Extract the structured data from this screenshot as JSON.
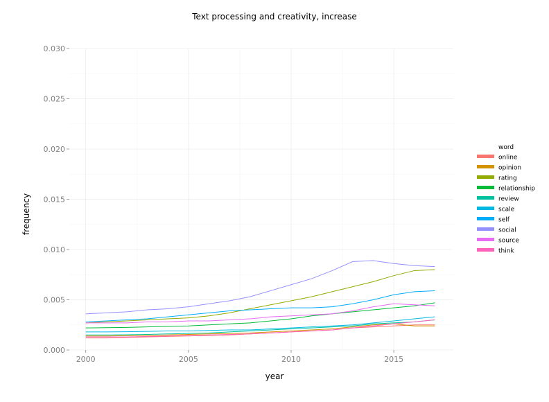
{
  "chart_data": {
    "type": "line",
    "title": "Text processing and creativity, increase",
    "xlabel": "year",
    "ylabel": "frequency",
    "xlim": [
      1999.2,
      2017.9
    ],
    "ylim": [
      0,
      0.03
    ],
    "x_ticks": [
      2000,
      2005,
      2010,
      2015
    ],
    "x_tick_labels": [
      "2000",
      "2005",
      "2010",
      "2015"
    ],
    "y_ticks": [
      0,
      0.005,
      0.01,
      0.015,
      0.02,
      0.025,
      0.03
    ],
    "y_tick_labels": [
      "0.000",
      "0.005",
      "0.010",
      "0.015",
      "0.020",
      "0.025",
      "0.030"
    ],
    "grid": true,
    "legend": {
      "title": "word",
      "placement": "right"
    },
    "x": [
      2000,
      2001,
      2002,
      2003,
      2004,
      2005,
      2006,
      2007,
      2008,
      2009,
      2010,
      2011,
      2012,
      2013,
      2014,
      2015,
      2016,
      2017
    ],
    "series": [
      {
        "name": "online",
        "color": "#F8766D",
        "values": [
          0.0012,
          0.0012,
          0.00125,
          0.0013,
          0.00135,
          0.0014,
          0.00145,
          0.0015,
          0.0016,
          0.0017,
          0.0018,
          0.0019,
          0.002,
          0.0022,
          0.0023,
          0.0024,
          0.0025,
          0.0025
        ]
      },
      {
        "name": "opinion",
        "color": "#D39200",
        "values": [
          0.0014,
          0.0014,
          0.00142,
          0.00145,
          0.0015,
          0.00155,
          0.0016,
          0.00165,
          0.0017,
          0.0018,
          0.0019,
          0.002,
          0.0021,
          0.0023,
          0.0025,
          0.0026,
          0.0024,
          0.0024
        ]
      },
      {
        "name": "rating",
        "color": "#93AA00",
        "values": [
          0.0027,
          0.0028,
          0.0029,
          0.003,
          0.0031,
          0.0032,
          0.0034,
          0.0037,
          0.0041,
          0.0045,
          0.0049,
          0.0053,
          0.0058,
          0.0063,
          0.0068,
          0.0074,
          0.0079,
          0.008
        ]
      },
      {
        "name": "relationship",
        "color": "#00BA38",
        "values": [
          0.0022,
          0.00222,
          0.00225,
          0.0023,
          0.00235,
          0.0024,
          0.0025,
          0.0026,
          0.0027,
          0.0029,
          0.0031,
          0.0034,
          0.0036,
          0.0038,
          0.004,
          0.0042,
          0.0044,
          0.0047
        ]
      },
      {
        "name": "review",
        "color": "#00C19F",
        "values": [
          0.0015,
          0.0015,
          0.00152,
          0.00155,
          0.0016,
          0.00165,
          0.0017,
          0.0018,
          0.0019,
          0.002,
          0.0021,
          0.0022,
          0.0023,
          0.0024,
          0.0026,
          0.0027,
          0.0028,
          0.003
        ]
      },
      {
        "name": "scale",
        "color": "#00B9E3",
        "values": [
          0.0018,
          0.0018,
          0.00182,
          0.00185,
          0.0019,
          0.0019,
          0.00195,
          0.002,
          0.002,
          0.0021,
          0.0022,
          0.0023,
          0.0024,
          0.0025,
          0.0027,
          0.0029,
          0.0031,
          0.0033
        ]
      },
      {
        "name": "self",
        "color": "#00ADFA",
        "values": [
          0.0028,
          0.0029,
          0.003,
          0.0031,
          0.0033,
          0.0035,
          0.0037,
          0.0039,
          0.004,
          0.0041,
          0.0042,
          0.0042,
          0.0043,
          0.0046,
          0.005,
          0.0055,
          0.0058,
          0.0059
        ]
      },
      {
        "name": "social",
        "color": "#9590FF",
        "values": [
          0.0036,
          0.0037,
          0.0038,
          0.004,
          0.0041,
          0.0043,
          0.0046,
          0.0049,
          0.0053,
          0.0059,
          0.0065,
          0.0071,
          0.0079,
          0.0088,
          0.0089,
          0.0086,
          0.0084,
          0.0083
        ]
      },
      {
        "name": "source",
        "color": "#E76BF3",
        "values": [
          0.0027,
          0.0027,
          0.0027,
          0.0028,
          0.0028,
          0.0029,
          0.0029,
          0.003,
          0.0031,
          0.0033,
          0.0034,
          0.0035,
          0.0036,
          0.0039,
          0.0043,
          0.0046,
          0.0045,
          0.0044
        ]
      },
      {
        "name": "think",
        "color": "#FF62BC",
        "values": [
          0.0013,
          0.0013,
          0.0013,
          0.00135,
          0.0014,
          0.00145,
          0.0015,
          0.00155,
          0.0016,
          0.0017,
          0.0018,
          0.0019,
          0.002,
          0.0022,
          0.0024,
          0.0026,
          0.0028,
          0.003
        ]
      }
    ]
  }
}
